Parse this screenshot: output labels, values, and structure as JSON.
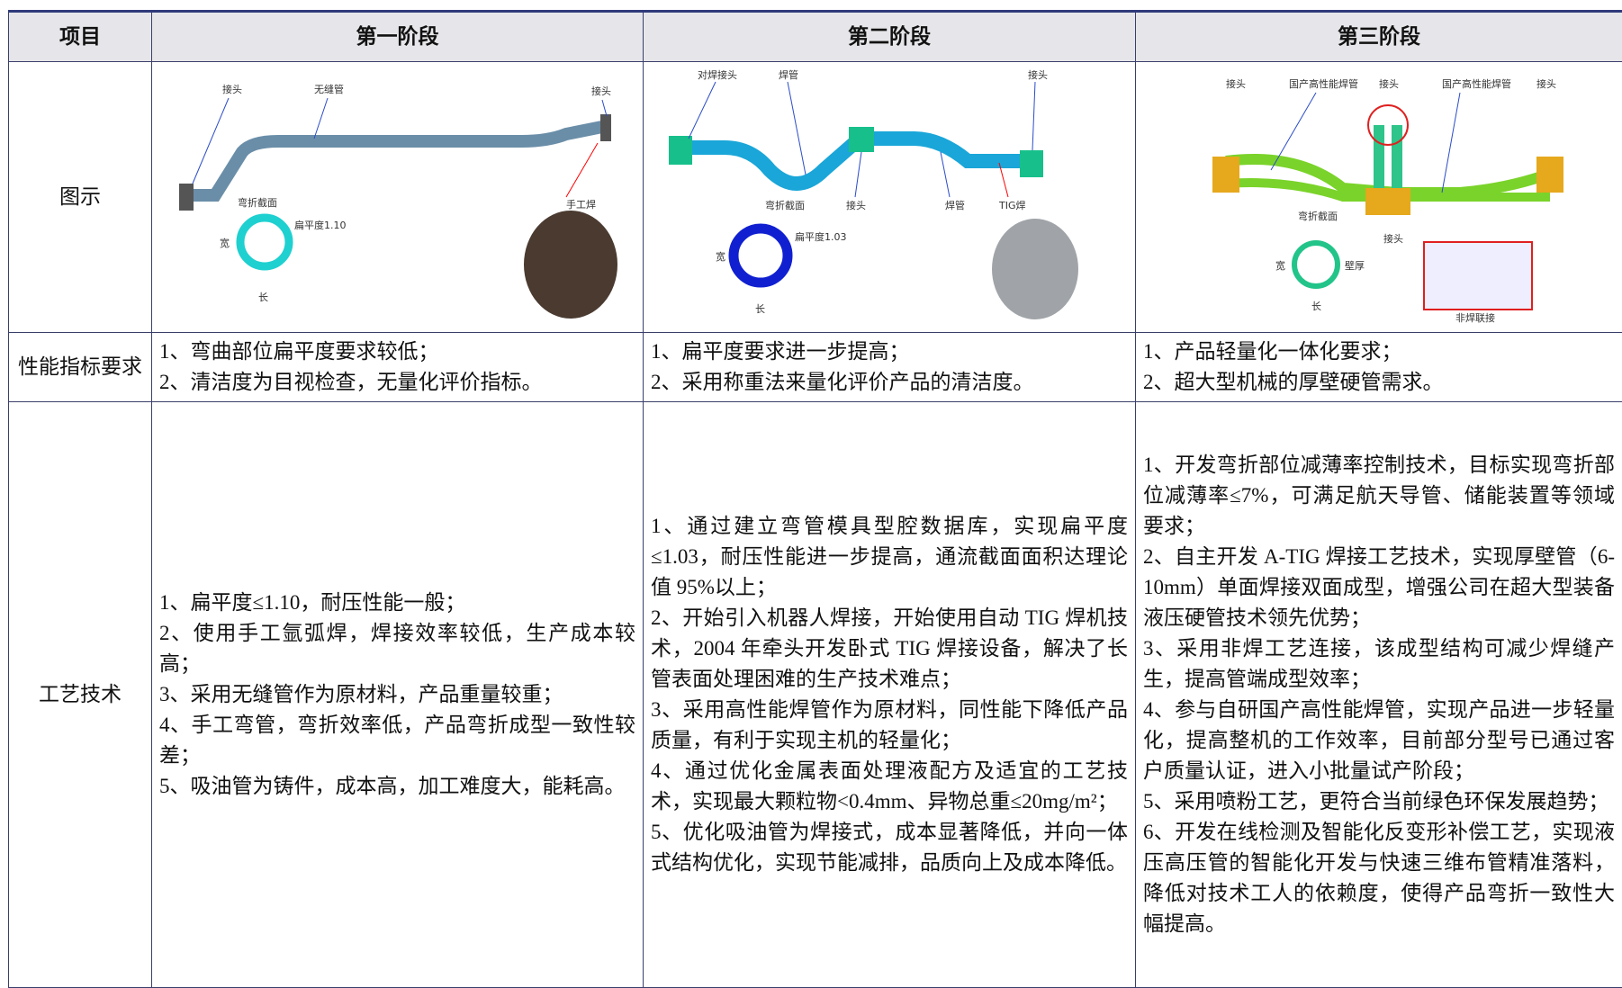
{
  "table": {
    "header": [
      "项目",
      "第一阶段",
      "第二阶段",
      "第三阶段"
    ],
    "diagram_row": {
      "label": "图示",
      "diagrams": [
        {
          "labels": [
            "接头",
            "无缝管",
            "接头",
            "弯折截面",
            "手工焊",
            "扁平度1.10",
            "宽",
            "长"
          ]
        },
        {
          "labels": [
            "对焊接头",
            "焊管",
            "接头",
            "弯折截面",
            "接头",
            "焊管",
            "TIG焊",
            "扁平度1.03",
            "宽",
            "长"
          ]
        },
        {
          "labels": [
            "接头",
            "国产高性能焊管",
            "接头",
            "国产高性能焊管",
            "接头",
            "弯折截面",
            "宽",
            "壁厚",
            "长",
            "接头",
            "非焊联接"
          ]
        }
      ]
    },
    "performance_row": {
      "label": "性能指标要求",
      "cells": [
        [
          "1、弯曲部位扁平度要求较低；",
          "2、清洁度为目视检查，无量化评价指标。"
        ],
        [
          "1、扁平度要求进一步提高；",
          "2、采用称重法来量化评价产品的清洁度。"
        ],
        [
          "1、产品轻量化一体化要求；",
          "2、超大型机械的厚壁硬管需求。"
        ]
      ]
    },
    "process_row": {
      "label": "工艺技术",
      "cells": [
        [
          "1、扁平度≤1.10，耐压性能一般；",
          "2、使用手工氩弧焊，焊接效率较低，生产成本较高；",
          "3、采用无缝管作为原材料，产品重量较重；",
          "4、手工弯管，弯折效率低，产品弯折成型一致性较差；",
          "5、吸油管为铸件，成本高，加工难度大，能耗高。"
        ],
        [
          "1、通过建立弯管模具型腔数据库，实现扁平度≤1.03，耐压性能进一步提高，通流截面面积达理论值 95%以上；",
          "2、开始引入机器人焊接，开始使用自动 TIG 焊机技术，2004 年牵头开发卧式 TIG 焊接设备，解决了长管表面处理困难的生产技术难点；",
          "3、采用高性能焊管作为原材料，同性能下降低产品质量，有利于实现主机的轻量化；",
          "4、通过优化金属表面处理液配方及适宜的工艺技术，实现最大颗粒物<0.4mm、异物总重≤20mg/m²；",
          "5、优化吸油管为焊接式，成本显著降低，并向一体式结构优化，实现节能减排，品质向上及成本降低。"
        ],
        [
          "1、开发弯折部位减薄率控制技术，目标实现弯折部位减薄率≤7%，可满足航天导管、储能装置等领域要求；",
          "2、自主开发 A-TIG 焊接工艺技术，实现厚壁管（6-10mm）单面焊接双面成型，增强公司在超大型装备液压硬管技术领先优势；",
          "3、采用非焊工艺连接，该成型结构可减少焊缝产生，提高管端成型效率；",
          "4、参与自研国产高性能焊管，实现产品进一步轻量化，提高整机的工作效率，目前部分型号已通过客户质量认证，进入小批量试产阶段；",
          "5、采用喷粉工艺，更符合当前绿色环保发展趋势；",
          "6、开发在线检测及智能化反变形补偿工艺，实现液压高压管的智能化开发与快速三维布管精准落料，降低对技术工人的依赖度，使得产品弯折一致性大幅提高。"
        ]
      ]
    }
  }
}
